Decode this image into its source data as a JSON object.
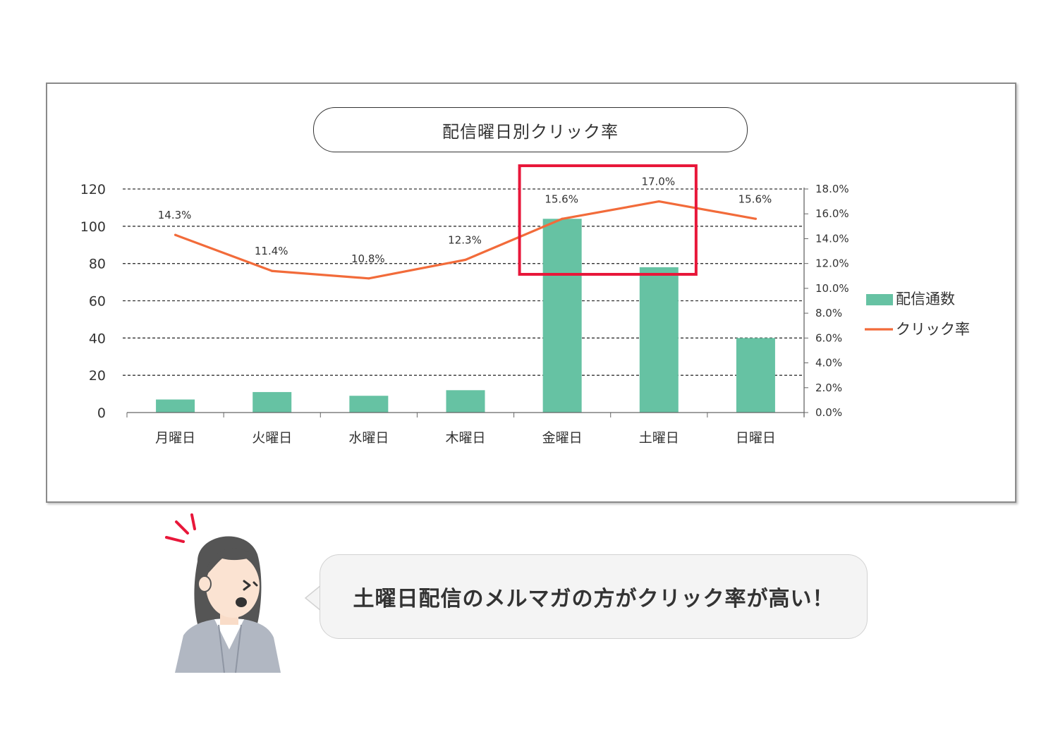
{
  "chart_data": {
    "type": "bar",
    "title": "配信曜日別クリック率",
    "categories": [
      "月曜日",
      "火曜日",
      "水曜日",
      "木曜日",
      "金曜日",
      "土曜日",
      "日曜日"
    ],
    "series": [
      {
        "name": "配信通数",
        "type": "bar",
        "axis": "left",
        "color": "#66c2a3",
        "values": [
          7,
          11,
          9,
          12,
          104,
          78,
          40
        ]
      },
      {
        "name": "クリック率",
        "type": "line",
        "axis": "right",
        "color": "#f26b3a",
        "values": [
          14.3,
          11.4,
          10.8,
          12.3,
          15.6,
          17.0,
          15.6
        ],
        "labels": [
          "14.3%",
          "11.4%",
          "10.8%",
          "12.3%",
          "15.6%",
          "17.0%",
          "15.6%"
        ]
      }
    ],
    "ylim": [
      0,
      120
    ],
    "yticks": [
      "0",
      "20",
      "40",
      "60",
      "80",
      "100",
      "120"
    ],
    "y2lim": [
      0,
      18
    ],
    "y2ticks": [
      "0.0%",
      "2.0%",
      "4.0%",
      "6.0%",
      "8.0%",
      "10.0%",
      "12.0%",
      "14.0%",
      "16.0%",
      "18.0%"
    ],
    "grid": "dashed horizontal",
    "legend_position": "right",
    "highlight": {
      "categories": [
        "金曜日",
        "土曜日"
      ],
      "color": "#e8173a"
    }
  },
  "callout": {
    "text": "土曜日配信のメルマガの方がクリック率が高い！"
  },
  "colors": {
    "accent_red": "#e8173a",
    "bar_green": "#66c2a3",
    "line_orange": "#f26b3a"
  },
  "icons": [
    "woman-avatar-icon",
    "surprise-marks-icon"
  ]
}
